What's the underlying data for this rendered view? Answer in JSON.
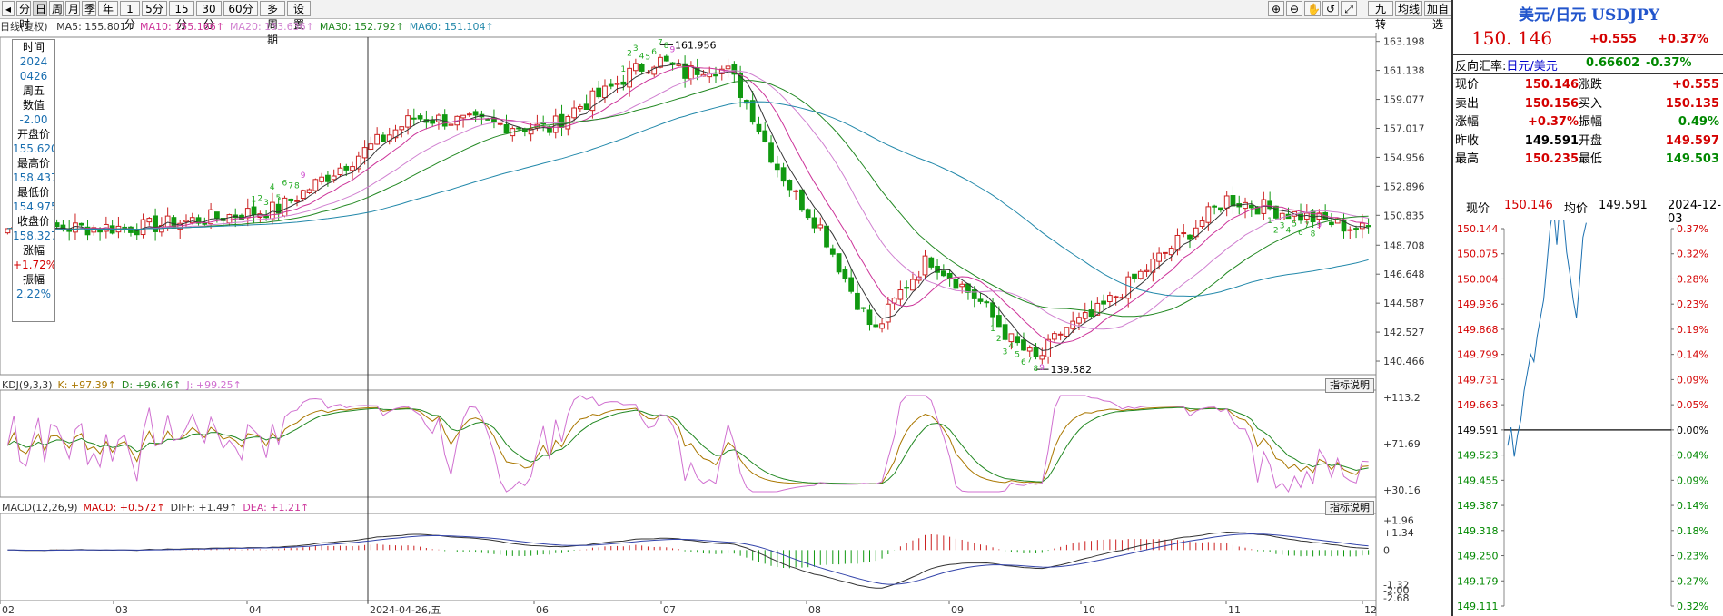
{
  "toolbar": {
    "left_buttons": [
      "分时",
      "日",
      "周",
      "月",
      "季",
      "年",
      "1分",
      "5分",
      "15分",
      "30分",
      "60分",
      "多周期",
      "设置"
    ],
    "selected": "日",
    "right_buttons": [
      "九转",
      "均线",
      "加自选"
    ]
  },
  "ma_legend": {
    "label": "日线(复权)",
    "items": [
      {
        "text": "MA5: 155.801↑",
        "color": "#333333"
      },
      {
        "text": "MA10: 155.166↑",
        "color": "#cc3399"
      },
      {
        "text": "MA20: 153.636↑",
        "color": "#d080d0"
      },
      {
        "text": "MA30: 152.792↑",
        "color": "#228822"
      },
      {
        "text": "MA60: 151.104↑",
        "color": "#2288aa"
      }
    ]
  },
  "info_box": {
    "rows": [
      "时间",
      "2024",
      "0426",
      "周五",
      "数值",
      "-2.00",
      "开盘价",
      "155.620",
      "最高价",
      "158.437",
      "最低价",
      "154.975",
      "收盘价",
      "158.327",
      "涨幅",
      "+1.72%",
      "振幅",
      "2.22%"
    ]
  },
  "kdj": {
    "legend": [
      {
        "text": "KDJ(9,3,3)",
        "color": "#333333"
      },
      {
        "text": "K: +97.39↑",
        "color": "#aa7700"
      },
      {
        "text": "D: +96.46↑",
        "color": "#228822"
      },
      {
        "text": "J: +99.25↑",
        "color": "#d070d0"
      }
    ],
    "button": "指标说明",
    "axis": [
      "+113.2",
      "+71.69",
      "+30.16"
    ]
  },
  "macd": {
    "legend": [
      {
        "text": "MACD(12,26,9)",
        "color": "#333333"
      },
      {
        "text": "MACD: +0.572↑",
        "color": "#cc0000"
      },
      {
        "text": "DIFF: +1.49↑",
        "color": "#333333"
      },
      {
        "text": "DEA: +1.21↑",
        "color": "#cc3399"
      }
    ],
    "button": "指标说明",
    "axis": [
      "+1.96",
      "+1.34",
      "0",
      "-1.32",
      "-2.00",
      "-2.68"
    ]
  },
  "x_labels": [
    "02",
    "03",
    "04",
    "2024-04-26,五",
    "06",
    "07",
    "08",
    "09",
    "10",
    "11",
    "12"
  ],
  "right_panel": {
    "title": "美元/日元 USDJPY",
    "price": "150. 146",
    "change": "+0.555",
    "change_pct": "+0.37%",
    "reverse_label": "反向汇率:",
    "reverse_pair": "日元/美元",
    "reverse_value": "0.66602",
    "reverse_pct": "-0.37%",
    "quote_rows": [
      {
        "l1": "现价",
        "v1": "150.146",
        "l2": "涨跌",
        "v2": "+0.555",
        "c1": "red",
        "c2": "red"
      },
      {
        "l1": "卖出",
        "v1": "150.156",
        "l2": "买入",
        "v2": "150.135",
        "c1": "red",
        "c2": "red"
      },
      {
        "l1": "涨幅",
        "v1": "+0.37%",
        "l2": "振幅",
        "v2": "0.49%",
        "c1": "red",
        "c2": "green"
      },
      {
        "l1": "昨收",
        "v1": "149.591",
        "l2": "开盘",
        "v2": "149.597",
        "c1": "black",
        "c2": "red"
      },
      {
        "l1": "最高",
        "v1": "150.235",
        "l2": "最低",
        "v2": "149.503",
        "c1": "red",
        "c2": "green"
      }
    ],
    "mini_header": {
      "now_label": "现价",
      "now": "150.146",
      "avg_label": "均价",
      "avg": "149.591",
      "date": "2024-12-03"
    },
    "mini_left_axis": [
      "150.144",
      "150.075",
      "150.004",
      "149.936",
      "149.868",
      "149.799",
      "149.731",
      "149.663",
      "149.591",
      "149.523",
      "149.455",
      "149.387",
      "149.318",
      "149.250",
      "149.179",
      "149.111"
    ],
    "mini_right_axis": [
      "0.37%",
      "0.32%",
      "0.28%",
      "0.23%",
      "0.19%",
      "0.14%",
      "0.09%",
      "0.05%",
      "0.00%",
      "0.04%",
      "0.09%",
      "0.14%",
      "0.18%",
      "0.23%",
      "0.27%",
      "0.32%"
    ]
  },
  "chart_data": {
    "type": "candlestick",
    "title": "USDJPY 日线",
    "y_axis_ticks": [
      "163.198",
      "161.138",
      "159.077",
      "157.017",
      "154.956",
      "152.896",
      "150.835",
      "148.708",
      "146.648",
      "144.587",
      "142.527",
      "140.466"
    ],
    "ylim": [
      139.5,
      163.5
    ],
    "annotations": [
      {
        "label": "161.956",
        "type": "high",
        "month": "07"
      },
      {
        "label": "139.582",
        "type": "low",
        "month": "09"
      }
    ],
    "monthly_close_approx": [
      {
        "month": "02",
        "close": 150.0
      },
      {
        "month": "03",
        "close": 151.3
      },
      {
        "month": "04",
        "close": 157.8
      },
      {
        "month": "05",
        "close": 157.0
      },
      {
        "month": "06",
        "close": 160.9
      },
      {
        "month": "07",
        "close": 150.0
      },
      {
        "month": "08",
        "close": 146.2
      },
      {
        "month": "09",
        "close": 143.6
      },
      {
        "month": "10",
        "close": 152.0
      },
      {
        "month": "11",
        "close": 149.8
      },
      {
        "month": "12",
        "close": 150.1
      }
    ],
    "series": [
      {
        "name": "MA5",
        "value": 155.801
      },
      {
        "name": "MA10",
        "value": 155.166
      },
      {
        "name": "MA20",
        "value": 153.636
      },
      {
        "name": "MA30",
        "value": 152.792
      },
      {
        "name": "MA60",
        "value": 151.104
      }
    ],
    "nine_turn_marks": [
      "1",
      "2",
      "3",
      "4",
      "5",
      "6",
      "7",
      "8",
      "9"
    ]
  }
}
